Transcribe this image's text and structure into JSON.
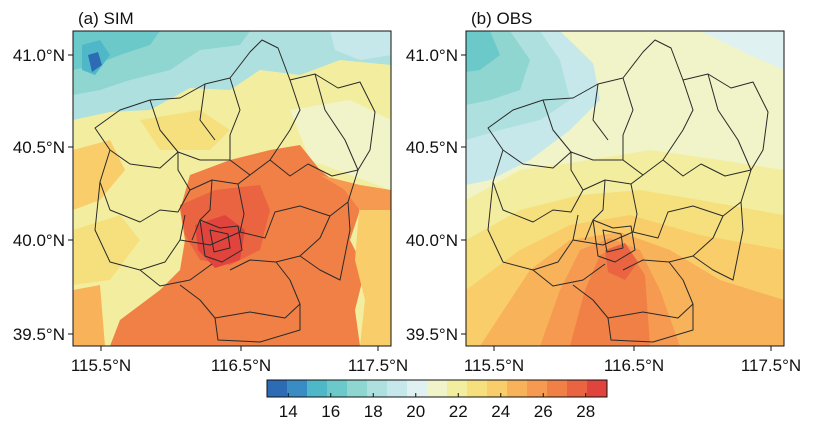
{
  "panels": [
    {
      "id": "sim",
      "title": "(a) SIM",
      "ytick_labels": [
        "41.0°N",
        "40.5°N",
        "40.0°N",
        "39.5°N"
      ],
      "xtick_labels": [
        "115.5°N",
        "116.5°N",
        "117.5°N"
      ]
    },
    {
      "id": "obs",
      "title": "(b) OBS",
      "ytick_labels": [
        "41.0°N",
        "40.5°N",
        "40.0°N",
        "39.5°N"
      ],
      "xtick_labels": [
        "115.5°N",
        "116.5°N",
        "117.5°N"
      ]
    }
  ],
  "colorbar": {
    "min": 13,
    "max": 29,
    "tick_labels": [
      "14",
      "16",
      "18",
      "20",
      "22",
      "24",
      "26",
      "28"
    ],
    "colors": [
      "#2e6bb5",
      "#3a8cc4",
      "#4fb8c8",
      "#6cc9c9",
      "#8fd6d0",
      "#aee0df",
      "#c6e8ea",
      "#dff1f0",
      "#f0f4c8",
      "#f3ee9f",
      "#f6e07e",
      "#f8cd6a",
      "#f8b35a",
      "#f59a50",
      "#f08046",
      "#eb6441",
      "#e1443c"
    ]
  }
}
